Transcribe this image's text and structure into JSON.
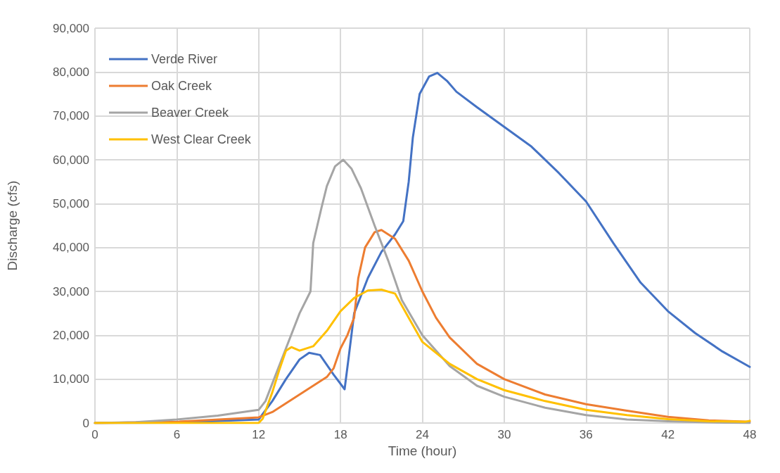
{
  "chart_data": {
    "type": "line",
    "xlabel": "Time (hour)",
    "ylabel": "Discharge (cfs)",
    "xlim": [
      0,
      48
    ],
    "xticks": [
      0,
      6,
      12,
      18,
      24,
      30,
      36,
      42,
      48
    ],
    "ylim": [
      0,
      90000
    ],
    "yticks": [
      {
        "value": 0,
        "label": "0"
      },
      {
        "value": 10000,
        "label": "10,000"
      },
      {
        "value": 20000,
        "label": "20,000"
      },
      {
        "value": 30000,
        "label": "30,000"
      },
      {
        "value": 40000,
        "label": "40,000"
      },
      {
        "value": 50000,
        "label": "50,000"
      },
      {
        "value": 60000,
        "label": "60,000"
      },
      {
        "value": 70000,
        "label": "70,000"
      },
      {
        "value": 80000,
        "label": "80,000"
      },
      {
        "value": 90000,
        "label": "90,000"
      }
    ],
    "grid": true,
    "legend": "top left",
    "marker": "none",
    "line_style": "solid",
    "series": [
      {
        "name": "Verde River",
        "color": "#4472c4",
        "x": [
          0,
          6,
          12,
          13,
          14,
          15,
          15.7,
          16.5,
          17.5,
          18.3,
          18.6,
          19,
          20,
          21,
          22,
          22.6,
          23,
          23.3,
          23.8,
          24.5,
          25.1,
          25.8,
          26.5,
          28,
          30,
          32,
          34,
          36,
          38,
          40,
          42,
          44,
          46,
          48
        ],
        "values": [
          0,
          100,
          800,
          5000,
          10000,
          14500,
          16000,
          15500,
          11000,
          7700,
          15000,
          25000,
          33000,
          39000,
          43000,
          46000,
          55000,
          65000,
          75000,
          79000,
          79800,
          78000,
          75500,
          72000,
          67500,
          63000,
          57000,
          50500,
          41000,
          32000,
          25500,
          20500,
          16300,
          12800
        ]
      },
      {
        "name": "Oak Creek",
        "color": "#ed7d31",
        "x": [
          0,
          6,
          12,
          13,
          14,
          15,
          16,
          17,
          17.5,
          18,
          18.5,
          19,
          19.3,
          19.8,
          20.5,
          21,
          22,
          23,
          24,
          25,
          26,
          28,
          30,
          33,
          36,
          39,
          42,
          45,
          48
        ],
        "values": [
          0,
          300,
          1300,
          2500,
          4500,
          6500,
          8500,
          10500,
          12500,
          17000,
          20000,
          24000,
          33000,
          40000,
          43500,
          44000,
          42000,
          37000,
          30000,
          24000,
          19500,
          13500,
          10000,
          6500,
          4300,
          2800,
          1400,
          600,
          300
        ]
      },
      {
        "name": "Beaver Creek",
        "color": "#a5a5a5",
        "x": [
          0,
          3,
          6,
          9,
          12,
          12.5,
          13,
          14,
          15,
          15.8,
          16,
          16.3,
          16.6,
          17,
          17.6,
          18.2,
          18.8,
          19.5,
          20.5,
          21.5,
          22.5,
          24,
          26,
          28,
          30,
          33,
          36,
          39,
          42,
          45,
          48
        ],
        "values": [
          0,
          200,
          800,
          1700,
          3000,
          5000,
          9000,
          17000,
          25000,
          30000,
          41000,
          45000,
          49000,
          54000,
          58500,
          60000,
          58000,
          53500,
          45000,
          37000,
          28000,
          20000,
          13000,
          8500,
          6000,
          3500,
          1800,
          800,
          400,
          150,
          0
        ]
      },
      {
        "name": "West Clear Creek",
        "color": "#ffc000",
        "x": [
          0,
          12,
          12.3,
          13,
          13.5,
          14,
          14.4,
          15,
          16,
          17,
          18,
          19,
          20,
          21,
          22,
          23,
          24,
          26,
          28,
          30,
          33,
          36,
          39,
          42,
          45,
          47.7,
          48
        ],
        "values": [
          0,
          0,
          1000,
          7000,
          12000,
          16500,
          17300,
          16500,
          17500,
          21000,
          25500,
          28500,
          30200,
          30400,
          29500,
          24000,
          18500,
          13500,
          10000,
          7500,
          5000,
          3000,
          1800,
          900,
          400,
          300,
          500
        ]
      }
    ]
  }
}
